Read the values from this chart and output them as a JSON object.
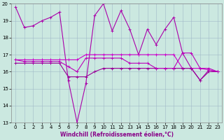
{
  "xlabel": "Windchill (Refroidissement éolien,°C)",
  "bg_color": "#cbe8e0",
  "grid_color": "#a0b8c8",
  "line_colors": [
    "#aa00aa",
    "#cc00cc",
    "#990099",
    "#bb00bb"
  ],
  "xlim": [
    -0.5,
    23.5
  ],
  "ylim": [
    13,
    20
  ],
  "yticks": [
    13,
    14,
    15,
    16,
    17,
    18,
    19,
    20
  ],
  "xticks": [
    0,
    1,
    2,
    3,
    4,
    5,
    6,
    7,
    8,
    9,
    10,
    11,
    12,
    13,
    14,
    15,
    16,
    17,
    18,
    19,
    20,
    21,
    22,
    23
  ],
  "series": [
    [
      19.8,
      18.6,
      18.7,
      19.0,
      19.2,
      19.5,
      15.5,
      13.0,
      15.3,
      19.3,
      20.0,
      18.4,
      19.6,
      18.5,
      17.0,
      18.5,
      17.6,
      18.5,
      19.2,
      17.1,
      16.2,
      15.5,
      16.1,
      16.0
    ],
    [
      16.7,
      16.7,
      16.7,
      16.7,
      16.7,
      16.7,
      16.7,
      16.7,
      17.0,
      17.0,
      17.0,
      17.0,
      17.0,
      17.0,
      17.0,
      17.0,
      17.0,
      17.0,
      17.0,
      16.2,
      16.2,
      16.2,
      16.1,
      16.0
    ],
    [
      16.5,
      16.5,
      16.5,
      16.5,
      16.5,
      16.5,
      15.7,
      15.7,
      15.7,
      16.0,
      16.2,
      16.2,
      16.2,
      16.2,
      16.2,
      16.2,
      16.2,
      16.2,
      16.2,
      16.2,
      16.2,
      15.5,
      16.0,
      16.0
    ],
    [
      16.7,
      16.6,
      16.6,
      16.6,
      16.6,
      16.6,
      16.3,
      16.0,
      16.8,
      16.8,
      16.8,
      16.8,
      16.8,
      16.5,
      16.5,
      16.5,
      16.2,
      16.2,
      16.2,
      17.1,
      17.1,
      16.2,
      16.2,
      16.0
    ]
  ],
  "marker": "+",
  "markersize": 3,
  "linewidth": 0.8,
  "tick_fontsize": 5,
  "xlabel_fontsize": 5.5,
  "xlabel_color": "#880088"
}
